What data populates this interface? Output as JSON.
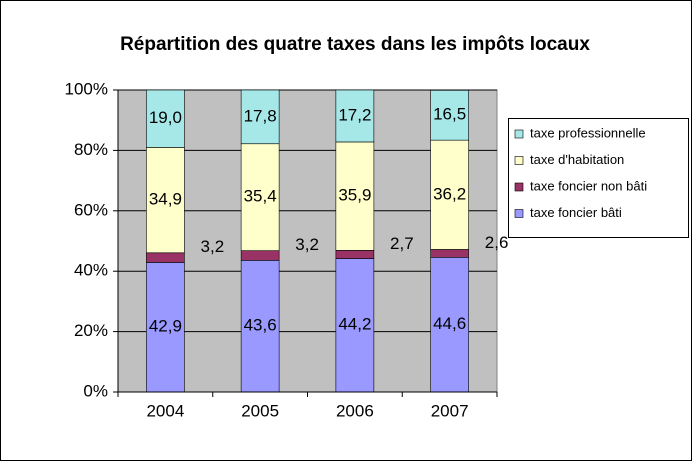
{
  "chart_data": {
    "type": "stacked_bar",
    "title": "Répartition des quatre taxes dans les impôts locaux",
    "categories": [
      "2004",
      "2005",
      "2006",
      "2007"
    ],
    "series": [
      {
        "name": "taxe foncier bâti",
        "color": "#9999ff",
        "values": [
          42.9,
          43.6,
          44.2,
          44.6
        ],
        "value_labels": [
          "42,9",
          "43,6",
          "44,2",
          "44,6"
        ]
      },
      {
        "name": "taxe foncier non bâti",
        "color": "#993366",
        "values": [
          3.2,
          3.2,
          2.7,
          2.6
        ],
        "value_labels": [
          "3,2",
          "3,2",
          "2,7",
          "2,6"
        ]
      },
      {
        "name": "taxe d'habitation",
        "color": "#ffffcc",
        "values": [
          34.9,
          35.4,
          35.9,
          36.2
        ],
        "value_labels": [
          "34,9",
          "35,4",
          "35,9",
          "36,2"
        ]
      },
      {
        "name": "taxe professionnelle",
        "color": "#a6e8e8",
        "values": [
          19.0,
          17.8,
          17.2,
          16.5
        ],
        "value_labels": [
          "19,0",
          "17,8",
          "17,2",
          "16,5"
        ]
      }
    ],
    "ylim": [
      0,
      100
    ],
    "yticks": [
      {
        "value": 0,
        "label": "0%"
      },
      {
        "value": 20,
        "label": "20%"
      },
      {
        "value": 40,
        "label": "40%"
      },
      {
        "value": 60,
        "label": "60%"
      },
      {
        "value": 80,
        "label": "80%"
      },
      {
        "value": 100,
        "label": "100%"
      }
    ],
    "grid": true
  }
}
